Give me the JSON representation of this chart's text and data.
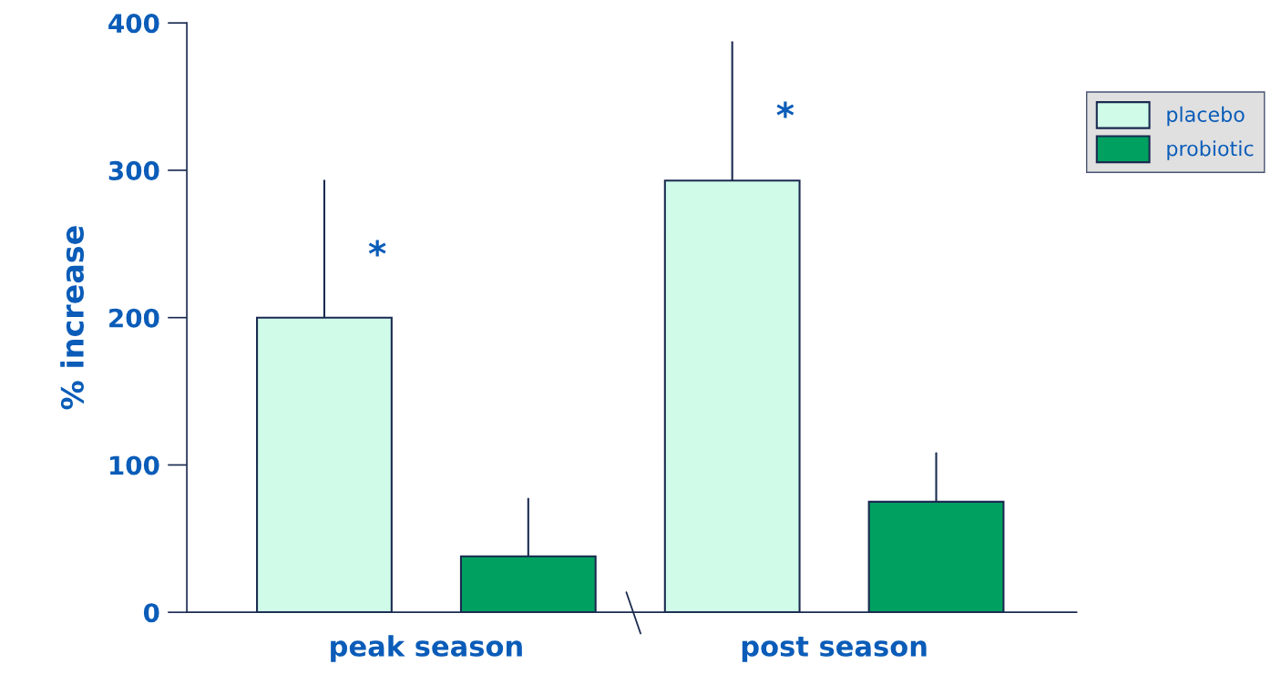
{
  "chart_data": {
    "type": "bar",
    "ylabel": "% increase",
    "categories": [
      "peak season",
      "post season"
    ],
    "series": [
      {
        "name": "placebo",
        "color": "#d0fbe9",
        "values": [
          200,
          293
        ],
        "errors": [
          [
            200,
            293
          ],
          [
            293,
            387
          ]
        ]
      },
      {
        "name": "probiotic",
        "color": "#00a060",
        "values": [
          38,
          75
        ],
        "errors": [
          [
            38,
            77
          ],
          [
            75,
            108
          ]
        ]
      }
    ],
    "ylim": [
      0,
      400
    ],
    "yticks": [
      0,
      100,
      200,
      300,
      400
    ],
    "grid": false,
    "legend": "top right",
    "annotations": [
      "*",
      "*"
    ]
  }
}
